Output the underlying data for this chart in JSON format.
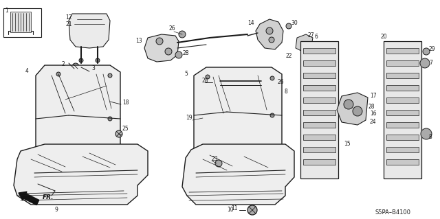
{
  "bg_color": "#ffffff",
  "fig_width": 6.4,
  "fig_height": 3.19,
  "dpi": 100,
  "diagram_code": "S5PA–B4100",
  "lc": "#1a1a1a",
  "fc_seat": "#f0f0f0",
  "fc_white": "#ffffff",
  "fc_dark": "#c8c8c8"
}
